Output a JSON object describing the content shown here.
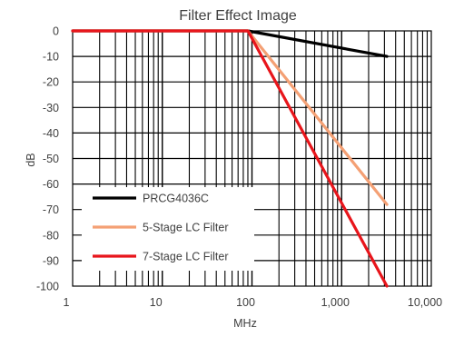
{
  "chart_data": {
    "type": "line",
    "title": "Filter Effect Image",
    "xlabel": "MHz",
    "ylabel": "dB",
    "x_scale": "log",
    "xlim": [
      1,
      10000
    ],
    "ylim": [
      -100,
      0
    ],
    "x_tick_labels": [
      "1",
      "10",
      "100",
      "1,000",
      "10,000"
    ],
    "y_tick_labels": [
      "0",
      "-10",
      "-20",
      "-30",
      "-40",
      "-50",
      "-60",
      "-70",
      "-80",
      "-90",
      "-100"
    ],
    "grid": true,
    "legend_position": "bottom-left",
    "series": [
      {
        "name": "PRCG4036C",
        "color": "#000000",
        "x": [
          1,
          90,
          3200
        ],
        "y": [
          0,
          0,
          -10
        ]
      },
      {
        "name": "5-Stage LC Filter",
        "color": "#f4a074",
        "x": [
          1,
          90,
          3200
        ],
        "y": [
          0,
          0,
          -68
        ]
      },
      {
        "name": "7-Stage LC Filter",
        "color": "#e8151b",
        "x": [
          1,
          90,
          3200
        ],
        "y": [
          0,
          0,
          -100
        ]
      }
    ]
  }
}
